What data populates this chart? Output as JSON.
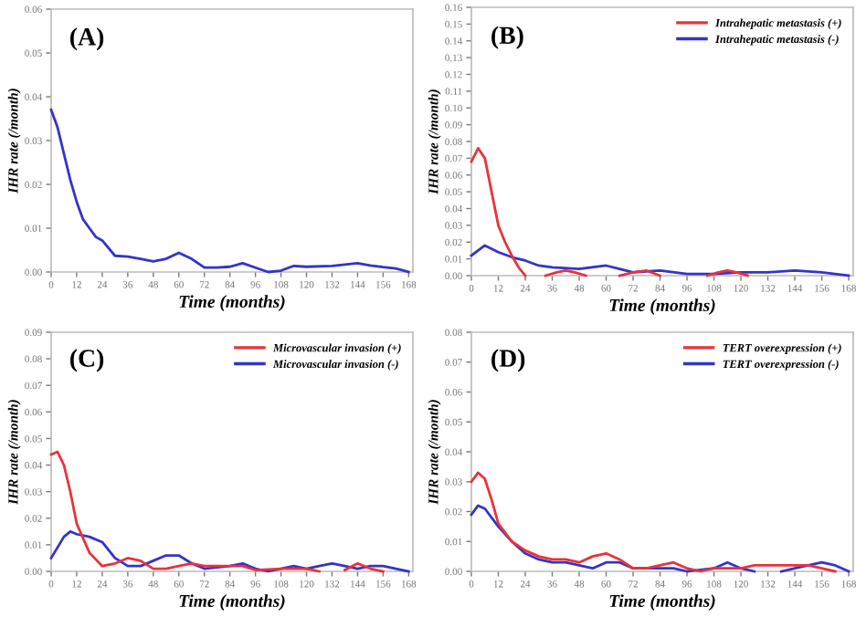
{
  "chart_data": [
    {
      "type": "line",
      "title": "(A)",
      "xlabel": "Time (months)",
      "ylabel": "IHR rate (/month)",
      "xlim": [
        0,
        170
      ],
      "xticks": [
        0,
        12,
        24,
        36,
        48,
        60,
        72,
        84,
        96,
        108,
        120,
        132,
        144,
        156,
        168
      ],
      "ylim": [
        0,
        0.06
      ],
      "yticks": [
        {
          "value": 0,
          "label": "0.00"
        },
        {
          "value": 0.01,
          "label": "0.01"
        },
        {
          "value": 0.02,
          "label": "0.02"
        },
        {
          "value": 0.03,
          "label": "0.03"
        },
        {
          "value": 0.04,
          "label": "0.04"
        },
        {
          "value": 0.05,
          "label": "0.05"
        },
        {
          "value": 0.06,
          "label": "0.06"
        }
      ],
      "grid": false,
      "legend": false,
      "series": [
        {
          "color": "#3333cc",
          "x": [
            0,
            3,
            6,
            9,
            12,
            15,
            18,
            21,
            24,
            30,
            36,
            42,
            48,
            54,
            60,
            66,
            72,
            78,
            84,
            90,
            96,
            102,
            108,
            114,
            120,
            132,
            144,
            150,
            156,
            162,
            168
          ],
          "values": [
            0.037,
            0.033,
            0.027,
            0.021,
            0.016,
            0.012,
            0.01,
            0.008,
            0.0072,
            0.0037,
            0.0035,
            0.003,
            0.0024,
            0.003,
            0.0044,
            0.003,
            0.001,
            0.001,
            0.0012,
            0.002,
            0.001,
            0,
            0.0003,
            0.0014,
            0.0012,
            0.0014,
            0.002,
            0.0015,
            0.0011,
            0.0008,
            0
          ]
        }
      ]
    },
    {
      "type": "line",
      "title": "(B)",
      "xlabel": "Time (months)",
      "ylabel": "IHR rate (/month)",
      "xlim": [
        0,
        170
      ],
      "xticks": [
        0,
        12,
        24,
        36,
        48,
        60,
        72,
        84,
        96,
        108,
        120,
        132,
        144,
        156,
        168
      ],
      "ylim": [
        0,
        0.16
      ],
      "yticks": [
        {
          "value": 0,
          "label": "0.00"
        },
        {
          "value": 0.01,
          "label": "0.01"
        },
        {
          "value": 0.02,
          "label": "0.02"
        },
        {
          "value": 0.03,
          "label": "0.03"
        },
        {
          "value": 0.04,
          "label": "0.04"
        },
        {
          "value": 0.05,
          "label": "0.05"
        },
        {
          "value": 0.06,
          "label": "0.06"
        },
        {
          "value": 0.07,
          "label": "0.07"
        },
        {
          "value": 0.08,
          "label": "0.08"
        },
        {
          "value": 0.09,
          "label": "0.09"
        },
        {
          "value": 0.1,
          "label": "0.10"
        },
        {
          "value": 0.11,
          "label": "0.11"
        },
        {
          "value": 0.12,
          "label": "0.12"
        },
        {
          "value": 0.13,
          "label": "0.13"
        },
        {
          "value": 0.14,
          "label": "0.14"
        },
        {
          "value": 0.15,
          "label": "0.15"
        },
        {
          "value": 0.16,
          "label": "0.16"
        }
      ],
      "grid": false,
      "legend": "top right",
      "series": [
        {
          "name": "Intrahepatic metastasis (+)",
          "color": "#e8333a",
          "x": [
            0,
            3,
            6,
            9,
            12,
            15,
            18,
            21,
            24,
            30,
            33,
            38,
            42,
            46,
            51,
            54,
            66,
            72,
            78,
            84,
            90,
            105,
            110,
            114,
            118,
            123
          ],
          "values": [
            0.068,
            0.076,
            0.07,
            0.05,
            0.03,
            0.02,
            0.012,
            0.005,
            0,
            null,
            0,
            0.002,
            0.003,
            0.002,
            0,
            null,
            0,
            0.002,
            0.003,
            0,
            null,
            0,
            0.002,
            0.003,
            0.002,
            0
          ]
        },
        {
          "name": "Intrahepatic metastasis (-)",
          "color": "#3333cc",
          "x": [
            0,
            6,
            12,
            18,
            24,
            30,
            36,
            48,
            60,
            66,
            72,
            84,
            96,
            108,
            120,
            132,
            144,
            156,
            168
          ],
          "values": [
            0.012,
            0.018,
            0.014,
            0.011,
            0.009,
            0.006,
            0.005,
            0.004,
            0.006,
            0.004,
            0.002,
            0.003,
            0.001,
            0.001,
            0.002,
            0.002,
            0.003,
            0.002,
            0
          ]
        }
      ]
    },
    {
      "type": "line",
      "title": "(C)",
      "xlabel": "Time (months)",
      "ylabel": "IHR rate (/month)",
      "xlim": [
        0,
        170
      ],
      "xticks": [
        0,
        12,
        24,
        36,
        48,
        60,
        72,
        84,
        96,
        108,
        120,
        132,
        144,
        156,
        168
      ],
      "ylim": [
        0,
        0.09
      ],
      "yticks": [
        {
          "value": 0,
          "label": "0.00"
        },
        {
          "value": 0.01,
          "label": "0.01"
        },
        {
          "value": 0.02,
          "label": "0.02"
        },
        {
          "value": 0.03,
          "label": "0.03"
        },
        {
          "value": 0.04,
          "label": "0.04"
        },
        {
          "value": 0.05,
          "label": "0.05"
        },
        {
          "value": 0.06,
          "label": "0.06"
        },
        {
          "value": 0.07,
          "label": "0.07"
        },
        {
          "value": 0.08,
          "label": "0.08"
        },
        {
          "value": 0.09,
          "label": "0.09"
        }
      ],
      "grid": false,
      "legend": "top right",
      "series": [
        {
          "name": "Microvascular invasion (+)",
          "color": "#e8333a",
          "x": [
            0,
            3,
            6,
            9,
            12,
            18,
            24,
            30,
            36,
            42,
            48,
            54,
            60,
            66,
            72,
            84,
            90,
            96,
            108,
            120,
            126,
            132,
            138,
            144,
            150,
            156
          ],
          "values": [
            0.044,
            0.045,
            0.04,
            0.03,
            0.018,
            0.007,
            0.002,
            0.003,
            0.005,
            0.004,
            0.001,
            0.001,
            0.002,
            0.003,
            0.002,
            0.002,
            0.002,
            0.0005,
            0.001,
            0.001,
            0,
            null,
            0.0005,
            0.003,
            0.001,
            0
          ]
        },
        {
          "name": "Microvascular invasion (-)",
          "color": "#3333cc",
          "x": [
            0,
            6,
            9,
            12,
            18,
            24,
            30,
            36,
            42,
            48,
            54,
            60,
            66,
            72,
            84,
            90,
            96,
            102,
            108,
            114,
            120,
            126,
            132,
            138,
            144,
            150,
            156,
            162,
            168
          ],
          "values": [
            0.005,
            0.013,
            0.015,
            0.014,
            0.013,
            0.011,
            0.005,
            0.002,
            0.002,
            0.004,
            0.006,
            0.006,
            0.003,
            0.001,
            0.002,
            0.003,
            0.001,
            0,
            0.001,
            0.002,
            0.001,
            0.002,
            0.003,
            0.002,
            0.001,
            0.002,
            0.002,
            0.001,
            0
          ]
        }
      ]
    },
    {
      "type": "line",
      "title": "(D)",
      "xlabel": "Time (months)",
      "ylabel": "IHR rate (/month)",
      "xlim": [
        0,
        170
      ],
      "xticks": [
        0,
        12,
        24,
        36,
        48,
        60,
        72,
        84,
        96,
        108,
        120,
        132,
        144,
        156,
        168
      ],
      "ylim": [
        0,
        0.08
      ],
      "yticks": [
        {
          "value": 0,
          "label": "0.00"
        },
        {
          "value": 0.01,
          "label": "0.01"
        },
        {
          "value": 0.02,
          "label": "0.02"
        },
        {
          "value": 0.03,
          "label": "0.03"
        },
        {
          "value": 0.04,
          "label": "0.04"
        },
        {
          "value": 0.05,
          "label": "0.05"
        },
        {
          "value": 0.06,
          "label": "0.06"
        },
        {
          "value": 0.07,
          "label": "0.07"
        },
        {
          "value": 0.08,
          "label": "0.08"
        }
      ],
      "grid": false,
      "legend": "top right",
      "series": [
        {
          "name": "TERT overexpression (+)",
          "color": "#e8333a",
          "x": [
            0,
            3,
            6,
            9,
            12,
            18,
            24,
            30,
            36,
            42,
            48,
            54,
            60,
            66,
            72,
            78,
            84,
            90,
            96,
            102,
            108,
            114,
            120,
            126,
            132,
            144,
            150,
            156,
            162
          ],
          "values": [
            0.03,
            0.033,
            0.031,
            0.024,
            0.016,
            0.01,
            0.007,
            0.005,
            0.004,
            0.004,
            0.003,
            0.005,
            0.006,
            0.004,
            0.001,
            0.001,
            0.002,
            0.003,
            0.001,
            0,
            0.001,
            0.001,
            0.001,
            0.002,
            0.002,
            0.002,
            0.002,
            0.001,
            0
          ]
        },
        {
          "name": "TERT overexpression (-)",
          "color": "#3333cc",
          "x": [
            0,
            3,
            6,
            12,
            18,
            24,
            30,
            36,
            42,
            48,
            54,
            60,
            66,
            72,
            84,
            90,
            96,
            108,
            114,
            120,
            126,
            132,
            138,
            144,
            150,
            156,
            162,
            168
          ],
          "values": [
            0.019,
            0.022,
            0.021,
            0.015,
            0.01,
            0.006,
            0.004,
            0.003,
            0.003,
            0.002,
            0.001,
            0.003,
            0.003,
            0.001,
            0.001,
            0.001,
            0,
            0.001,
            0.003,
            0.001,
            0,
            null,
            0,
            0.001,
            0.002,
            0.003,
            0.002,
            0
          ]
        }
      ]
    }
  ]
}
